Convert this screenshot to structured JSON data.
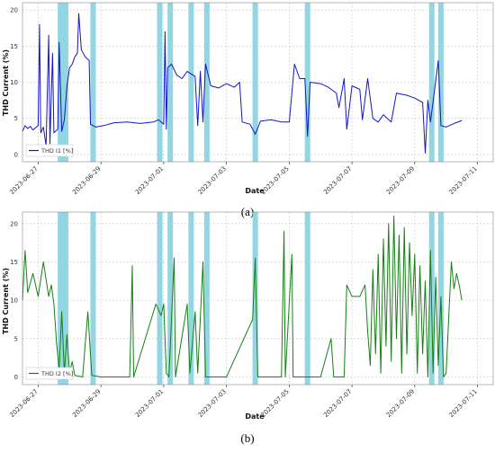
{
  "chart_data": [
    {
      "type": "line",
      "panel_label": "(a)",
      "xlabel": "Date",
      "ylabel": "THD Current (%)",
      "x_ticks": [
        "2023-06-27",
        "2023-06-29",
        "2023-07-01",
        "2023-07-03",
        "2023-07-05",
        "2023-07-07",
        "2023-07-09",
        "2023-07-11"
      ],
      "ylim": [
        -1,
        21
      ],
      "y_ticks": [
        0,
        5,
        10,
        15,
        20
      ],
      "grid": true,
      "legend_position": "bottom-left",
      "series": [
        {
          "name": "THD I1 [%]",
          "color": "#1515c8",
          "points": [
            [
              "2023-06-26T12:00",
              3.2
            ],
            [
              "2023-06-26T14:00",
              4.0
            ],
            [
              "2023-06-26T16:00",
              3.6
            ],
            [
              "2023-06-26T18:00",
              3.9
            ],
            [
              "2023-06-26T20:00",
              3.4
            ],
            [
              "2023-06-27T00:00",
              4.0
            ],
            [
              "2023-06-27T01:00",
              18.0
            ],
            [
              "2023-06-27T02:00",
              3.0
            ],
            [
              "2023-06-27T04:00",
              3.8
            ],
            [
              "2023-06-27T06:00",
              1.2
            ],
            [
              "2023-06-27T08:00",
              16.5
            ],
            [
              "2023-06-27T09:00",
              1.5
            ],
            [
              "2023-06-27T11:00",
              14.0
            ],
            [
              "2023-06-27T12:00",
              3.0
            ],
            [
              "2023-06-27T15:00",
              3.5
            ],
            [
              "2023-06-27T16:00",
              15.5
            ],
            [
              "2023-06-27T18:00",
              3.2
            ],
            [
              "2023-06-27T20:00",
              4.8
            ],
            [
              "2023-06-27T22:00",
              9.5
            ],
            [
              "2023-06-28T00:00",
              12.0
            ],
            [
              "2023-06-28T02:00",
              12.5
            ],
            [
              "2023-06-28T04:00",
              13.5
            ],
            [
              "2023-06-28T06:00",
              14.0
            ],
            [
              "2023-06-28T07:00",
              19.5
            ],
            [
              "2023-06-28T09:00",
              14.5
            ],
            [
              "2023-06-28T12:00",
              13.5
            ],
            [
              "2023-06-28T15:00",
              13.0
            ],
            [
              "2023-06-28T16:00",
              4.2
            ],
            [
              "2023-06-28T20:00",
              3.8
            ],
            [
              "2023-06-29T02:00",
              4.0
            ],
            [
              "2023-06-29T10:00",
              4.4
            ],
            [
              "2023-06-29T20:00",
              4.5
            ],
            [
              "2023-06-30T06:00",
              4.3
            ],
            [
              "2023-06-30T16:00",
              4.5
            ],
            [
              "2023-06-30T20:00",
              4.8
            ],
            [
              "2023-07-01T00:00",
              4.2
            ],
            [
              "2023-07-01T01:00",
              17.0
            ],
            [
              "2023-07-01T02:00",
              3.5
            ],
            [
              "2023-07-01T03:00",
              12.0
            ],
            [
              "2023-07-01T06:00",
              12.5
            ],
            [
              "2023-07-01T10:00",
              11.0
            ],
            [
              "2023-07-01T14:00",
              10.5
            ],
            [
              "2023-07-01T18:00",
              11.5
            ],
            [
              "2023-07-02T00:00",
              10.8
            ],
            [
              "2023-07-02T02:00",
              4.0
            ],
            [
              "2023-07-02T04:00",
              11.5
            ],
            [
              "2023-07-02T06:00",
              4.5
            ],
            [
              "2023-07-02T08:00",
              12.5
            ],
            [
              "2023-07-02T12:00",
              9.5
            ],
            [
              "2023-07-02T18:00",
              9.2
            ],
            [
              "2023-07-03T00:00",
              9.8
            ],
            [
              "2023-07-03T06:00",
              9.3
            ],
            [
              "2023-07-03T10:00",
              10.0
            ],
            [
              "2023-07-03T12:00",
              4.5
            ],
            [
              "2023-07-03T18:00",
              4.2
            ],
            [
              "2023-07-03T22:00",
              2.8
            ],
            [
              "2023-07-04T02:00",
              4.6
            ],
            [
              "2023-07-04T10:00",
              4.8
            ],
            [
              "2023-07-04T18:00",
              4.5
            ],
            [
              "2023-07-05T00:00",
              4.5
            ],
            [
              "2023-07-05T04:00",
              12.5
            ],
            [
              "2023-07-05T08:00",
              10.5
            ],
            [
              "2023-07-05T12:00",
              10.5
            ],
            [
              "2023-07-05T14:00",
              2.5
            ],
            [
              "2023-07-05T16:00",
              10.0
            ],
            [
              "2023-07-06T00:00",
              9.8
            ],
            [
              "2023-07-06T06:00",
              9.3
            ],
            [
              "2023-07-06T12:00",
              8.5
            ],
            [
              "2023-07-06T14:00",
              6.5
            ],
            [
              "2023-07-06T18:00",
              10.5
            ],
            [
              "2023-07-06T20:00",
              3.5
            ],
            [
              "2023-07-07T00:00",
              9.5
            ],
            [
              "2023-07-07T06:00",
              9.0
            ],
            [
              "2023-07-07T08:00",
              4.8
            ],
            [
              "2023-07-07T12:00",
              10.5
            ],
            [
              "2023-07-07T16:00",
              5.0
            ],
            [
              "2023-07-07T20:00",
              4.5
            ],
            [
              "2023-07-08T00:00",
              5.5
            ],
            [
              "2023-07-08T06:00",
              4.5
            ],
            [
              "2023-07-08T10:00",
              8.5
            ],
            [
              "2023-07-08T18:00",
              8.2
            ],
            [
              "2023-07-09T00:00",
              7.8
            ],
            [
              "2023-07-09T06:00",
              7.2
            ],
            [
              "2023-07-09T08:00",
              0.2
            ],
            [
              "2023-07-09T10:00",
              7.5
            ],
            [
              "2023-07-09T12:00",
              4.5
            ],
            [
              "2023-07-09T18:00",
              13.0
            ],
            [
              "2023-07-09T20:00",
              4.0
            ],
            [
              "2023-07-10T00:00",
              3.8
            ],
            [
              "2023-07-10T06:00",
              4.3
            ],
            [
              "2023-07-10T12:00",
              4.7
            ]
          ]
        }
      ],
      "highlight_color": "#86d2df",
      "highlight_dates": [
        "2023-06-27T17:00",
        "2023-06-27T21:00",
        "2023-06-28T18:00",
        "2023-06-30T21:00",
        "2023-07-01T05:00",
        "2023-07-01T21:00",
        "2023-07-02T09:00",
        "2023-07-03T22:00",
        "2023-07-05T14:00",
        "2023-07-09T13:00",
        "2023-07-09T20:00"
      ]
    },
    {
      "type": "line",
      "panel_label": "(b)",
      "xlabel": "Date",
      "ylabel": "THD Current (%)",
      "x_ticks": [
        "2023-06-27",
        "2023-06-29",
        "2023-07-01",
        "2023-07-03",
        "2023-07-05",
        "2023-07-07",
        "2023-07-09",
        "2023-07-11"
      ],
      "ylim": [
        -1,
        21.5
      ],
      "y_ticks": [
        0,
        5,
        10,
        15,
        20
      ],
      "grid": true,
      "legend_position": "bottom-left",
      "series": [
        {
          "name": "THD I2 [%]",
          "color": "#168016",
          "points": [
            [
              "2023-06-26T12:00",
              10.0
            ],
            [
              "2023-06-26T14:00",
              16.5
            ],
            [
              "2023-06-26T16:00",
              11.0
            ],
            [
              "2023-06-26T20:00",
              13.5
            ],
            [
              "2023-06-27T00:00",
              10.5
            ],
            [
              "2023-06-27T04:00",
              15.0
            ],
            [
              "2023-06-27T08:00",
              10.5
            ],
            [
              "2023-06-27T10:00",
              12.0
            ],
            [
              "2023-06-27T12:00",
              9.5
            ],
            [
              "2023-06-27T14:00",
              4.5
            ],
            [
              "2023-06-27T16:00",
              1.0
            ],
            [
              "2023-06-27T18:00",
              8.5
            ],
            [
              "2023-06-27T20:00",
              0.5
            ],
            [
              "2023-06-27T22:00",
              5.5
            ],
            [
              "2023-06-28T00:00",
              0.5
            ],
            [
              "2023-06-28T02:00",
              2.0
            ],
            [
              "2023-06-28T04:00",
              0.2
            ],
            [
              "2023-06-28T10:00",
              0.0
            ],
            [
              "2023-06-28T14:00",
              8.5
            ],
            [
              "2023-06-28T17:00",
              0.2
            ],
            [
              "2023-06-29T00:00",
              0.0
            ],
            [
              "2023-06-29T22:00",
              0.0
            ],
            [
              "2023-06-30T00:00",
              14.5
            ],
            [
              "2023-06-30T01:00",
              0.0
            ],
            [
              "2023-06-30T18:00",
              9.5
            ],
            [
              "2023-06-30T22:00",
              8.0
            ],
            [
              "2023-07-01T00:00",
              9.5
            ],
            [
              "2023-07-01T02:00",
              0.5
            ],
            [
              "2023-07-01T04:00",
              0.0
            ],
            [
              "2023-07-01T08:00",
              15.5
            ],
            [
              "2023-07-01T09:00",
              0.0
            ],
            [
              "2023-07-01T18:00",
              9.5
            ],
            [
              "2023-07-01T20:00",
              0.5
            ],
            [
              "2023-07-02T00:00",
              8.5
            ],
            [
              "2023-07-02T02:00",
              0.5
            ],
            [
              "2023-07-02T06:00",
              15.0
            ],
            [
              "2023-07-02T08:00",
              0.0
            ],
            [
              "2023-07-03T00:00",
              0.0
            ],
            [
              "2023-07-03T20:00",
              7.5
            ],
            [
              "2023-07-03T22:00",
              15.5
            ],
            [
              "2023-07-04T00:00",
              0.0
            ],
            [
              "2023-07-04T18:00",
              0.0
            ],
            [
              "2023-07-04T20:00",
              19.0
            ],
            [
              "2023-07-04T21:00",
              0.0
            ],
            [
              "2023-07-05T02:00",
              16.0
            ],
            [
              "2023-07-05T03:00",
              0.0
            ],
            [
              "2023-07-06T00:00",
              0.0
            ],
            [
              "2023-07-06T08:00",
              5.0
            ],
            [
              "2023-07-06T10:00",
              0.0
            ],
            [
              "2023-07-06T18:00",
              0.0
            ],
            [
              "2023-07-06T20:00",
              12.0
            ],
            [
              "2023-07-07T00:00",
              10.5
            ],
            [
              "2023-07-07T06:00",
              10.5
            ],
            [
              "2023-07-07T10:00",
              12.0
            ],
            [
              "2023-07-07T12:00",
              6.0
            ],
            [
              "2023-07-07T14:00",
              1.5
            ],
            [
              "2023-07-07T16:00",
              14.0
            ],
            [
              "2023-07-07T18:00",
              3.0
            ],
            [
              "2023-07-07T20:00",
              16.0
            ],
            [
              "2023-07-07T22:00",
              0.5
            ],
            [
              "2023-07-08T00:00",
              18.0
            ],
            [
              "2023-07-08T02:00",
              4.0
            ],
            [
              "2023-07-08T04:00",
              20.0
            ],
            [
              "2023-07-08T06:00",
              2.0
            ],
            [
              "2023-07-08T08:00",
              21.0
            ],
            [
              "2023-07-08T10:00",
              5.0
            ],
            [
              "2023-07-08T12:00",
              18.5
            ],
            [
              "2023-07-08T14:00",
              0.5
            ],
            [
              "2023-07-08T16:00",
              19.5
            ],
            [
              "2023-07-08T18:00",
              3.0
            ],
            [
              "2023-07-08T20:00",
              17.5
            ],
            [
              "2023-07-08T22:00",
              8.0
            ],
            [
              "2023-07-09T00:00",
              16.0
            ],
            [
              "2023-07-09T02:00",
              0.5
            ],
            [
              "2023-07-09T04:00",
              14.5
            ],
            [
              "2023-07-09T06:00",
              3.0
            ],
            [
              "2023-07-09T08:00",
              12.5
            ],
            [
              "2023-07-09T10:00",
              0.0
            ],
            [
              "2023-07-09T12:00",
              16.5
            ],
            [
              "2023-07-09T14:00",
              0.5
            ],
            [
              "2023-07-09T16:00",
              13.0
            ],
            [
              "2023-07-09T18:00",
              1.5
            ],
            [
              "2023-07-09T20:00",
              10.5
            ],
            [
              "2023-07-09T22:00",
              0.0
            ],
            [
              "2023-07-10T00:00",
              0.5
            ],
            [
              "2023-07-10T04:00",
              15.0
            ],
            [
              "2023-07-10T06:00",
              11.5
            ],
            [
              "2023-07-10T08:00",
              13.5
            ],
            [
              "2023-07-10T10:00",
              12.0
            ],
            [
              "2023-07-10T12:00",
              10.0
            ]
          ]
        }
      ],
      "highlight_color": "#86d2df",
      "highlight_dates": [
        "2023-06-27T17:00",
        "2023-06-27T21:00",
        "2023-06-28T18:00",
        "2023-06-30T21:00",
        "2023-07-01T05:00",
        "2023-07-01T21:00",
        "2023-07-02T09:00",
        "2023-07-03T22:00",
        "2023-07-05T14:00",
        "2023-07-09T13:00",
        "2023-07-09T20:00"
      ]
    }
  ]
}
